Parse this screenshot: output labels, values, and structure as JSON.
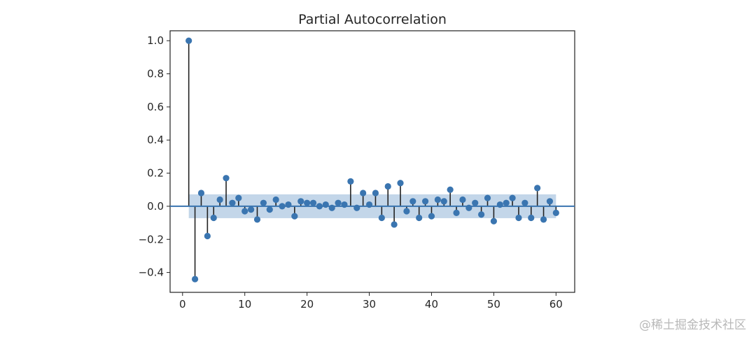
{
  "chart_data": {
    "type": "stem",
    "title": "Partial Autocorrelation",
    "xlim": [
      -2,
      63
    ],
    "ylim": [
      -0.52,
      1.06
    ],
    "x_ticks": [
      0,
      10,
      20,
      30,
      40,
      50,
      60
    ],
    "y_ticks": [
      1.0,
      0.8,
      0.6,
      0.4,
      0.2,
      0.0,
      -0.2,
      -0.4
    ],
    "y_tick_labels": [
      "1.0",
      "0.8",
      "0.6",
      "0.4",
      "0.2",
      "0.0",
      "−0.2",
      "−0.4"
    ],
    "confidence_interval": [
      -0.072,
      0.072
    ],
    "baseline": 0.0,
    "grid": false,
    "colors": {
      "marker": "#3a75b0",
      "stem": "#222222",
      "band": "#a9c4e0",
      "baseline": "#3a75b0"
    },
    "series": [
      {
        "x": [
          1,
          2,
          3,
          4,
          5,
          6,
          7,
          8,
          9,
          10,
          11,
          12,
          13,
          14,
          15,
          16,
          17,
          18,
          19,
          20,
          21,
          22,
          23,
          24,
          25,
          26,
          27,
          28,
          29,
          30,
          31,
          32,
          33,
          34,
          35,
          36,
          37,
          38,
          39,
          40,
          41,
          42,
          43,
          44,
          45,
          46,
          47,
          48,
          49,
          50,
          51,
          52,
          53,
          54,
          55,
          56,
          57,
          58,
          59,
          60
        ],
        "values": [
          1.0,
          -0.44,
          0.08,
          -0.18,
          -0.07,
          0.04,
          0.17,
          0.02,
          0.05,
          -0.03,
          -0.02,
          -0.08,
          0.02,
          -0.02,
          0.04,
          0.0,
          0.01,
          -0.06,
          0.03,
          0.02,
          0.02,
          0.0,
          0.01,
          -0.01,
          0.02,
          0.01,
          0.15,
          -0.01,
          0.08,
          0.01,
          0.08,
          -0.07,
          0.12,
          -0.11,
          0.14,
          -0.03,
          0.03,
          -0.07,
          0.03,
          -0.06,
          0.04,
          0.03,
          0.1,
          -0.04,
          0.04,
          -0.01,
          0.02,
          -0.05,
          0.05,
          -0.09,
          0.01,
          0.02,
          0.05,
          -0.07,
          0.02,
          -0.07,
          0.11,
          -0.08,
          0.03,
          -0.04
        ]
      }
    ]
  },
  "watermark": "@稀土掘金技术社区"
}
